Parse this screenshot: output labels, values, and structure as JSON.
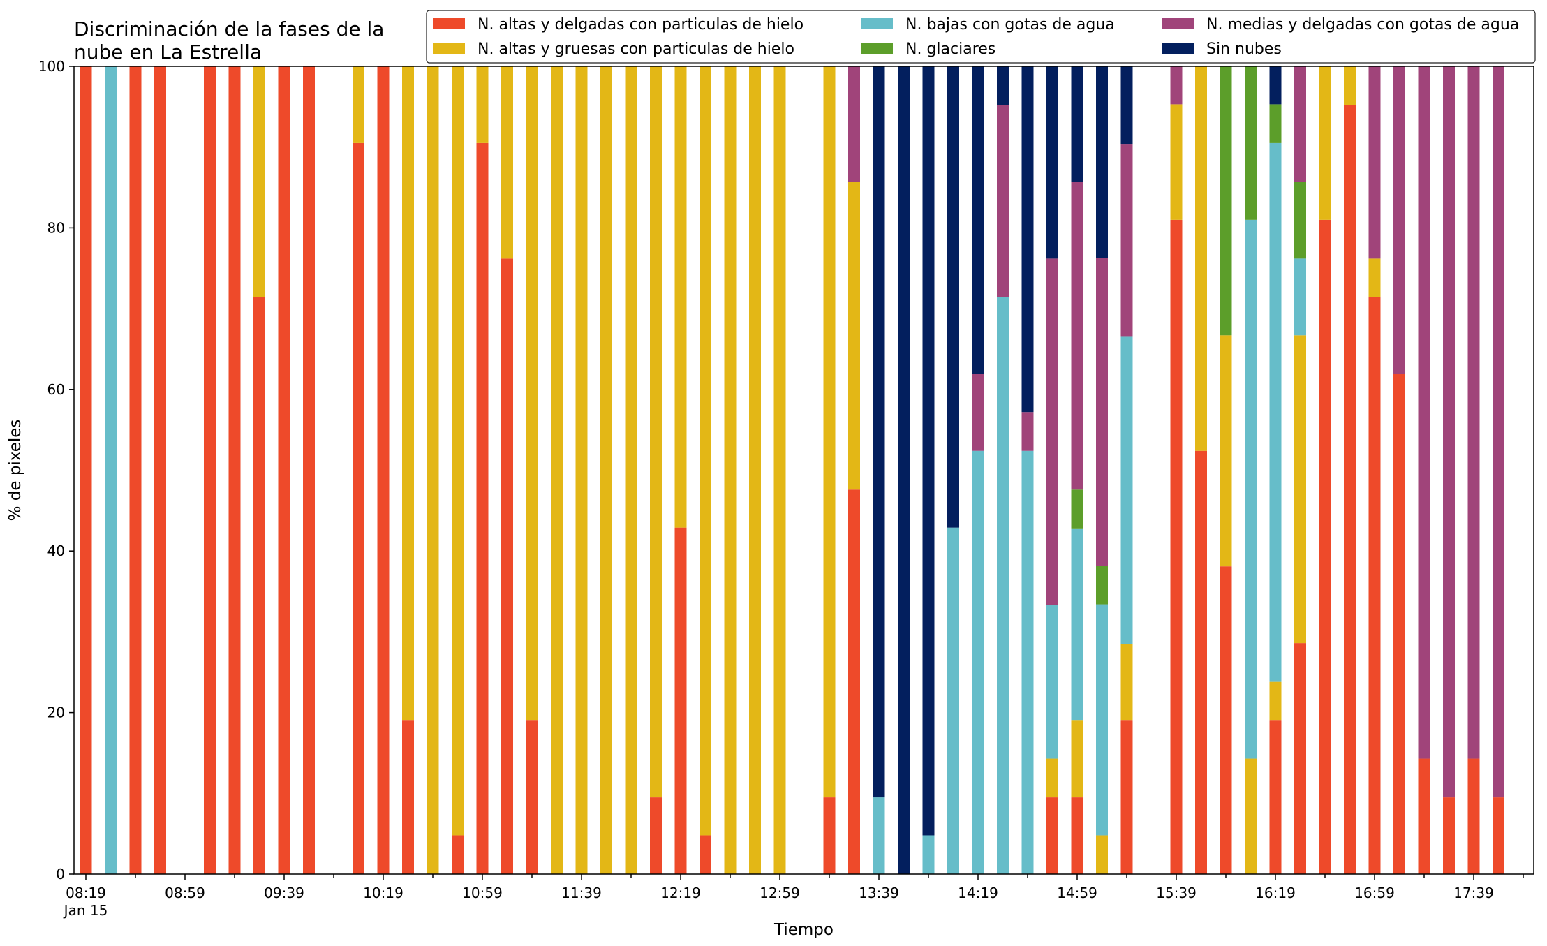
{
  "chart_data": {
    "type": "bar",
    "stacked": true,
    "title_lines": [
      "Discriminación de la fases de la",
      "nube en La Estrella"
    ],
    "xlabel": "Tiempo",
    "ylabel": "% de pixeles",
    "ylim": [
      0,
      100
    ],
    "yticks": [
      "0",
      "20",
      "40",
      "60",
      "80",
      "100"
    ],
    "grid": false,
    "legend_position": "top-right",
    "x_tick_labels": [
      {
        "slot": 0,
        "label": "08:19",
        "sublabel": "Jan 15"
      },
      {
        "slot": 4,
        "label": "08:59"
      },
      {
        "slot": 8,
        "label": "09:39"
      },
      {
        "slot": 12,
        "label": "10:19"
      },
      {
        "slot": 16,
        "label": "10:59"
      },
      {
        "slot": 20,
        "label": "11:39"
      },
      {
        "slot": 24,
        "label": "12:19"
      },
      {
        "slot": 28,
        "label": "12:59"
      },
      {
        "slot": 32,
        "label": "13:39"
      },
      {
        "slot": 36,
        "label": "14:19"
      },
      {
        "slot": 40,
        "label": "14:59"
      },
      {
        "slot": 44,
        "label": "15:39"
      },
      {
        "slot": 48,
        "label": "16:19"
      },
      {
        "slot": 52,
        "label": "16:59"
      },
      {
        "slot": 56,
        "label": "17:39"
      }
    ],
    "series_order": [
      "red",
      "yellow",
      "cyan",
      "green",
      "purple",
      "navy"
    ],
    "series": [
      {
        "key": "red",
        "name": "N. altas y delgadas con particulas de hielo",
        "color": "#EE4A2A"
      },
      {
        "key": "yellow",
        "name": "N. altas y gruesas con particulas de hielo",
        "color": "#E3B716"
      },
      {
        "key": "cyan",
        "name": "N. bajas con gotas de agua",
        "color": "#66BDC9"
      },
      {
        "key": "green",
        "name": "N. glaciares",
        "color": "#5C9E2A"
      },
      {
        "key": "purple",
        "name": "N. medias y delgadas con gotas de agua",
        "color": "#A0447A"
      },
      {
        "key": "navy",
        "name": "Sin nubes",
        "color": "#031F5E"
      }
    ],
    "legend_layout": [
      [
        "red",
        "cyan",
        "purple"
      ],
      [
        "yellow",
        "green",
        "navy"
      ]
    ],
    "bars": [
      {
        "slot": 0,
        "red": 100
      },
      {
        "slot": 1,
        "cyan": 100
      },
      {
        "slot": 2,
        "red": 100
      },
      {
        "slot": 3,
        "red": 100
      },
      {
        "slot": 5,
        "red": 100
      },
      {
        "slot": 6,
        "red": 100
      },
      {
        "slot": 7,
        "red": 71.4,
        "yellow": 28.6
      },
      {
        "slot": 8,
        "red": 100
      },
      {
        "slot": 9,
        "red": 100
      },
      {
        "slot": 11,
        "red": 90.5,
        "yellow": 9.5
      },
      {
        "slot": 12,
        "red": 100
      },
      {
        "slot": 13,
        "red": 19,
        "yellow": 81
      },
      {
        "slot": 14,
        "yellow": 100
      },
      {
        "slot": 15,
        "red": 4.8,
        "yellow": 95.2
      },
      {
        "slot": 16,
        "red": 90.5,
        "yellow": 9.5
      },
      {
        "slot": 17,
        "red": 76.2,
        "yellow": 23.8
      },
      {
        "slot": 18,
        "red": 19,
        "yellow": 81
      },
      {
        "slot": 19,
        "yellow": 100
      },
      {
        "slot": 20,
        "yellow": 100
      },
      {
        "slot": 21,
        "yellow": 100
      },
      {
        "slot": 22,
        "yellow": 100
      },
      {
        "slot": 23,
        "red": 9.5,
        "yellow": 90.5
      },
      {
        "slot": 24,
        "red": 42.9,
        "yellow": 57.1
      },
      {
        "slot": 25,
        "red": 4.8,
        "yellow": 95.2
      },
      {
        "slot": 26,
        "yellow": 100
      },
      {
        "slot": 27,
        "yellow": 100
      },
      {
        "slot": 28,
        "yellow": 100
      },
      {
        "slot": 30,
        "red": 9.5,
        "yellow": 90.5
      },
      {
        "slot": 31,
        "red": 47.6,
        "yellow": 38.1,
        "purple": 14.3
      },
      {
        "slot": 32,
        "cyan": 9.5,
        "navy": 90.5
      },
      {
        "slot": 33,
        "navy": 100
      },
      {
        "slot": 34,
        "cyan": 4.8,
        "navy": 95.2
      },
      {
        "slot": 35,
        "cyan": 42.9,
        "navy": 57.1
      },
      {
        "slot": 36,
        "cyan": 52.4,
        "purple": 9.5,
        "navy": 38.1
      },
      {
        "slot": 37,
        "cyan": 71.4,
        "purple": 23.8,
        "navy": 4.8
      },
      {
        "slot": 38,
        "cyan": 52.4,
        "purple": 4.8,
        "navy": 42.8
      },
      {
        "slot": 39,
        "red": 9.5,
        "yellow": 4.8,
        "cyan": 19,
        "purple": 42.9,
        "navy": 23.8
      },
      {
        "slot": 40,
        "red": 9.5,
        "yellow": 9.5,
        "cyan": 23.8,
        "green": 4.8,
        "purple": 38.1,
        "navy": 14.3
      },
      {
        "slot": 41,
        "yellow": 4.8,
        "cyan": 28.6,
        "green": 4.8,
        "purple": 38.1,
        "navy": 23.7
      },
      {
        "slot": 42,
        "red": 19,
        "yellow": 9.5,
        "cyan": 38.1,
        "purple": 23.8,
        "navy": 9.6
      },
      {
        "slot": 44,
        "red": 81,
        "yellow": 14.3,
        "purple": 4.7
      },
      {
        "slot": 45,
        "red": 52.4,
        "yellow": 47.6
      },
      {
        "slot": 46,
        "red": 38.1,
        "yellow": 28.6,
        "green": 33.3
      },
      {
        "slot": 47,
        "yellow": 14.3,
        "cyan": 66.7,
        "green": 19
      },
      {
        "slot": 48,
        "red": 19,
        "yellow": 4.8,
        "cyan": 66.7,
        "green": 4.8,
        "navy": 4.7
      },
      {
        "slot": 49,
        "red": 28.6,
        "yellow": 38.1,
        "cyan": 9.5,
        "green": 9.5,
        "purple": 14.3
      },
      {
        "slot": 50,
        "red": 81,
        "yellow": 19
      },
      {
        "slot": 51,
        "red": 95.2,
        "yellow": 4.8
      },
      {
        "slot": 52,
        "red": 71.4,
        "yellow": 4.8,
        "purple": 23.8
      },
      {
        "slot": 53,
        "red": 61.9,
        "purple": 38.1
      },
      {
        "slot": 54,
        "red": 14.3,
        "purple": 85.7
      },
      {
        "slot": 55,
        "red": 9.5,
        "purple": 90.5
      },
      {
        "slot": 56,
        "red": 14.3,
        "purple": 85.7
      },
      {
        "slot": 57,
        "red": 9.5,
        "purple": 90.5
      }
    ]
  }
}
